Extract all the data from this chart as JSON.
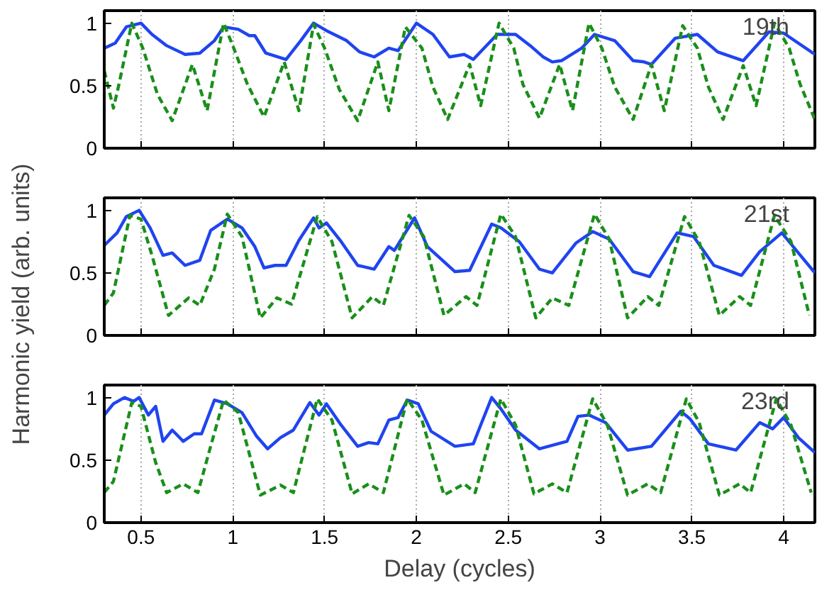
{
  "chart_data": [
    {
      "type": "line",
      "annotations": [
        "19th"
      ],
      "xlim": [
        0.3,
        4.17
      ],
      "ylim": [
        0,
        1.1
      ],
      "xticks": [
        0.5,
        1,
        1.5,
        2,
        2.5,
        3,
        3.5,
        4
      ],
      "yticks": [
        0,
        0.5,
        1
      ],
      "grid": "x",
      "tick_labels": "y",
      "series": [
        {
          "color": "#1f44f0",
          "line_style": "solid",
          "x": [
            0.3,
            0.36,
            0.42,
            0.5,
            0.56,
            0.64,
            0.74,
            0.82,
            0.9,
            0.95,
            1.03,
            1.09,
            1.12,
            1.18,
            1.29,
            1.37,
            1.44,
            1.51,
            1.62,
            1.69,
            1.77,
            1.85,
            1.9,
            2.0,
            2.09,
            2.18,
            2.26,
            2.31,
            2.44,
            2.54,
            2.62,
            2.69,
            2.74,
            2.79,
            2.9,
            2.97,
            3.08,
            3.18,
            3.24,
            3.28,
            3.41,
            3.53,
            3.64,
            3.78,
            3.92,
            4.0,
            4.17
          ],
          "values": [
            0.8,
            0.84,
            0.97,
            1.0,
            0.91,
            0.82,
            0.75,
            0.76,
            0.86,
            0.97,
            0.95,
            0.9,
            0.9,
            0.76,
            0.71,
            0.86,
            1.0,
            0.94,
            0.86,
            0.77,
            0.73,
            0.8,
            0.78,
            1.0,
            0.91,
            0.73,
            0.75,
            0.71,
            0.91,
            0.91,
            0.82,
            0.73,
            0.69,
            0.7,
            0.8,
            0.91,
            0.86,
            0.7,
            0.69,
            0.67,
            0.88,
            0.91,
            0.77,
            0.7,
            0.93,
            0.92,
            0.75
          ]
        },
        {
          "color": "#1a8f1a",
          "line_style": "dashed",
          "x": [
            0.3,
            0.35,
            0.38,
            0.45,
            0.51,
            0.59,
            0.67,
            0.78,
            0.86,
            0.95,
            1.0,
            1.08,
            1.17,
            1.28,
            1.36,
            1.44,
            1.5,
            1.58,
            1.68,
            1.79,
            1.85,
            1.94,
            2.03,
            2.09,
            2.17,
            2.29,
            2.35,
            2.45,
            2.53,
            2.58,
            2.67,
            2.78,
            2.85,
            2.94,
            3.01,
            3.08,
            3.18,
            3.28,
            3.35,
            3.45,
            3.53,
            3.59,
            3.67,
            3.78,
            3.85,
            3.95,
            4.03,
            4.09,
            4.17
          ],
          "values": [
            0.62,
            0.32,
            0.51,
            1.0,
            0.8,
            0.43,
            0.22,
            0.67,
            0.3,
            1.0,
            0.82,
            0.51,
            0.25,
            0.69,
            0.3,
            0.99,
            0.8,
            0.47,
            0.22,
            0.69,
            0.3,
            0.97,
            0.8,
            0.49,
            0.23,
            0.67,
            0.34,
            1.0,
            0.8,
            0.51,
            0.24,
            0.67,
            0.3,
            1.0,
            0.8,
            0.49,
            0.23,
            0.67,
            0.3,
            0.98,
            0.8,
            0.49,
            0.23,
            0.66,
            0.34,
            1.0,
            0.8,
            0.51,
            0.23
          ]
        }
      ]
    },
    {
      "type": "line",
      "annotations": [
        "21st"
      ],
      "ylabel": "Harmonic yield (arb. units)",
      "xlim": [
        0.3,
        4.17
      ],
      "ylim": [
        0,
        1.1
      ],
      "xticks": [
        0.5,
        1,
        1.5,
        2,
        2.5,
        3,
        3.5,
        4
      ],
      "yticks": [
        0,
        0.5,
        1
      ],
      "grid": "x",
      "tick_labels": "y",
      "series": [
        {
          "color": "#1f44f0",
          "line_style": "solid",
          "x": [
            0.3,
            0.37,
            0.42,
            0.49,
            0.55,
            0.62,
            0.67,
            0.74,
            0.82,
            0.88,
            0.97,
            1.05,
            1.12,
            1.17,
            1.23,
            1.29,
            1.36,
            1.44,
            1.47,
            1.51,
            1.59,
            1.68,
            1.77,
            1.85,
            1.88,
            1.99,
            2.06,
            2.21,
            2.29,
            2.41,
            2.46,
            2.56,
            2.67,
            2.74,
            2.87,
            2.96,
            3.05,
            3.18,
            3.27,
            3.42,
            3.51,
            3.62,
            3.77,
            3.87,
            3.99,
            4.08,
            4.17
          ],
          "values": [
            0.72,
            0.82,
            0.95,
            1.0,
            0.86,
            0.64,
            0.66,
            0.56,
            0.6,
            0.84,
            0.93,
            0.86,
            0.71,
            0.54,
            0.56,
            0.56,
            0.76,
            0.94,
            0.86,
            0.9,
            0.75,
            0.56,
            0.53,
            0.71,
            0.68,
            0.94,
            0.71,
            0.51,
            0.52,
            0.89,
            0.86,
            0.75,
            0.53,
            0.5,
            0.74,
            0.83,
            0.77,
            0.51,
            0.47,
            0.82,
            0.79,
            0.56,
            0.48,
            0.67,
            0.82,
            0.66,
            0.5
          ]
        },
        {
          "color": "#1a8f1a",
          "line_style": "dashed",
          "x": [
            0.3,
            0.35,
            0.44,
            0.5,
            0.56,
            0.65,
            0.76,
            0.82,
            0.9,
            0.97,
            1.05,
            1.15,
            1.24,
            1.32,
            1.46,
            1.54,
            1.65,
            1.76,
            1.82,
            1.96,
            2.04,
            2.15,
            2.27,
            2.33,
            2.46,
            2.54,
            2.65,
            2.74,
            2.83,
            2.97,
            3.05,
            3.15,
            3.26,
            3.32,
            3.46,
            3.54,
            3.65,
            3.76,
            3.82,
            3.95,
            4.04,
            4.14
          ],
          "values": [
            0.24,
            0.34,
            0.96,
            0.93,
            0.64,
            0.16,
            0.3,
            0.24,
            0.53,
            0.97,
            0.79,
            0.14,
            0.3,
            0.25,
            0.95,
            0.75,
            0.14,
            0.31,
            0.24,
            0.96,
            0.79,
            0.16,
            0.31,
            0.24,
            0.97,
            0.79,
            0.14,
            0.3,
            0.24,
            0.97,
            0.77,
            0.14,
            0.31,
            0.24,
            0.95,
            0.75,
            0.16,
            0.31,
            0.24,
            0.96,
            0.75,
            0.16
          ]
        }
      ]
    },
    {
      "type": "line",
      "annotations": [
        "23rd"
      ],
      "xlabel": "Delay (cycles)",
      "xlim": [
        0.3,
        4.17
      ],
      "ylim": [
        0,
        1.1
      ],
      "xticks": [
        0.5,
        1,
        1.5,
        2,
        2.5,
        3,
        3.5,
        4
      ],
      "yticks": [
        0,
        0.5,
        1
      ],
      "grid": "x",
      "series": [
        {
          "color": "#1f44f0",
          "line_style": "solid",
          "x": [
            0.3,
            0.35,
            0.41,
            0.46,
            0.49,
            0.54,
            0.58,
            0.62,
            0.67,
            0.73,
            0.79,
            0.83,
            0.9,
            0.97,
            1.05,
            1.13,
            1.19,
            1.26,
            1.33,
            1.42,
            1.47,
            1.51,
            1.59,
            1.68,
            1.74,
            1.79,
            1.85,
            1.9,
            1.95,
            2.01,
            2.08,
            2.21,
            2.31,
            2.35,
            2.41,
            2.46,
            2.54,
            2.67,
            2.82,
            2.88,
            2.94,
            3.03,
            3.15,
            3.28,
            3.44,
            3.49,
            3.59,
            3.74,
            3.87,
            3.94,
            4.0,
            4.08,
            4.17
          ],
          "values": [
            0.86,
            0.95,
            1.0,
            0.97,
            1.0,
            0.86,
            0.93,
            0.65,
            0.74,
            0.65,
            0.71,
            0.71,
            0.98,
            0.95,
            0.88,
            0.69,
            0.59,
            0.68,
            0.74,
            0.96,
            0.86,
            0.95,
            0.78,
            0.61,
            0.64,
            0.63,
            0.82,
            0.84,
            0.98,
            0.95,
            0.73,
            0.61,
            0.63,
            0.78,
            1.0,
            0.91,
            0.74,
            0.59,
            0.65,
            0.85,
            0.86,
            0.8,
            0.58,
            0.61,
            0.89,
            0.83,
            0.63,
            0.58,
            0.8,
            0.75,
            0.84,
            0.68,
            0.56
          ]
        },
        {
          "color": "#1a8f1a",
          "line_style": "dashed",
          "x": [
            0.3,
            0.35,
            0.45,
            0.5,
            0.58,
            0.64,
            0.73,
            0.81,
            0.87,
            0.95,
            1.03,
            1.15,
            1.26,
            1.33,
            1.46,
            1.54,
            1.65,
            1.74,
            1.82,
            1.95,
            2.03,
            2.15,
            2.26,
            2.32,
            2.46,
            2.54,
            2.64,
            2.74,
            2.82,
            2.96,
            3.04,
            3.15,
            3.26,
            3.33,
            3.47,
            3.54,
            3.65,
            3.76,
            3.82,
            3.96,
            4.04,
            4.15
          ],
          "values": [
            0.24,
            0.33,
            0.96,
            0.93,
            0.48,
            0.24,
            0.31,
            0.24,
            0.56,
            0.98,
            0.88,
            0.22,
            0.3,
            0.24,
            0.99,
            0.82,
            0.23,
            0.31,
            0.24,
            0.99,
            0.82,
            0.22,
            0.31,
            0.24,
            0.99,
            0.78,
            0.23,
            0.31,
            0.24,
            0.99,
            0.78,
            0.22,
            0.31,
            0.24,
            0.99,
            0.8,
            0.22,
            0.31,
            0.24,
            0.99,
            0.78,
            0.24
          ]
        }
      ]
    }
  ]
}
